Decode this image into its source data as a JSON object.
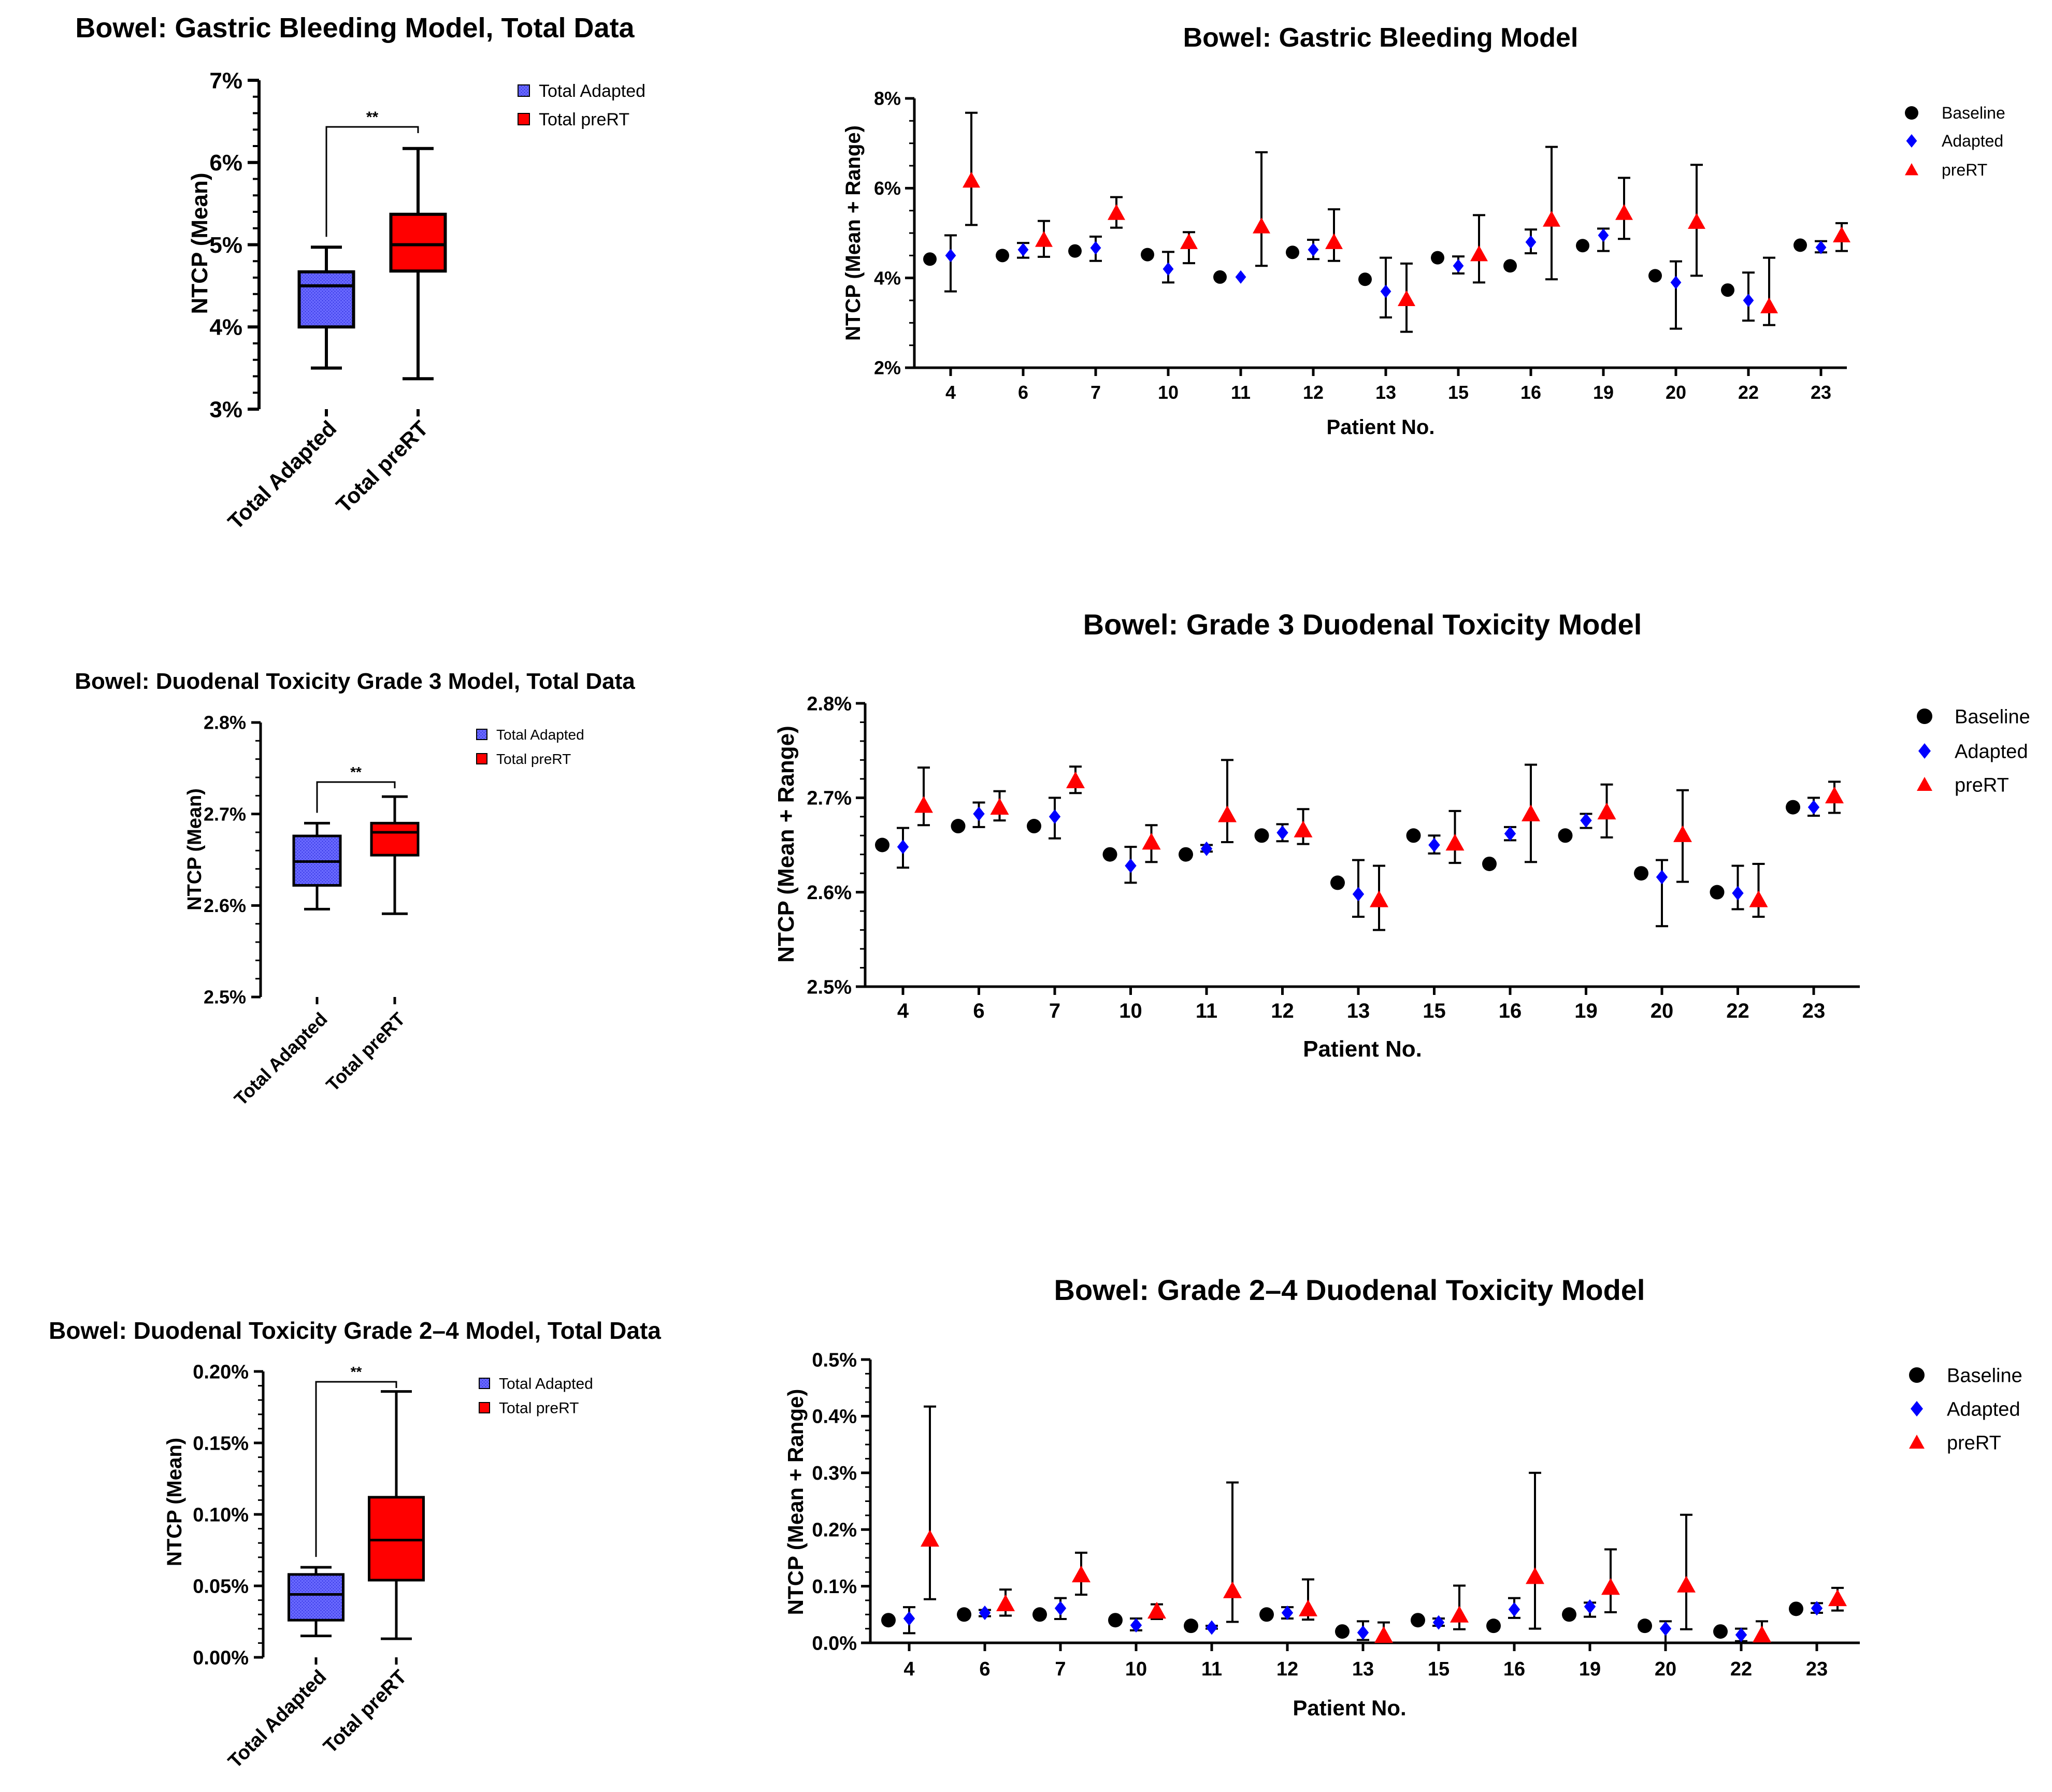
{
  "colors": {
    "axis": "#000000",
    "baseline": "#000000",
    "adapted": "#0000ff",
    "preRT": "#ff0000",
    "box_adapted": "#6a6aff",
    "box_preRT": "#ff0000"
  },
  "patients": [
    "4",
    "6",
    "7",
    "10",
    "11",
    "12",
    "13",
    "15",
    "16",
    "19",
    "20",
    "22",
    "23"
  ],
  "box_categories": [
    "Total Adapted",
    "Total preRT"
  ],
  "chart_data": [
    {
      "type": "box",
      "title": "Bowel: Gastric Bleeding Model, Total Data",
      "ylabel": "NTCP (Mean)",
      "yticks": [
        "3%",
        "4%",
        "5%",
        "6%",
        "7%"
      ],
      "ylim": [
        3,
        7
      ],
      "categories": [
        "Total Adapted",
        "Total preRT"
      ],
      "boxes": [
        {
          "name": "Total Adapted",
          "min": 3.5,
          "q1": 4.0,
          "median": 4.5,
          "q3": 4.67,
          "max": 4.97
        },
        {
          "name": "Total preRT",
          "min": 3.37,
          "q1": 4.68,
          "median": 5.0,
          "q3": 5.37,
          "max": 6.17
        }
      ],
      "legend": [
        "Total Adapted",
        "Total preRT"
      ],
      "significance": "**"
    },
    {
      "type": "scatter",
      "title": "Bowel: Gastric Bleeding Model",
      "xlabel": "Patient No.",
      "ylabel": "NTCP (Mean + Range)",
      "yticks": [
        "2%",
        "4%",
        "6%",
        "8%"
      ],
      "ylim": [
        2,
        8
      ],
      "categories": [
        "4",
        "6",
        "7",
        "10",
        "11",
        "12",
        "13",
        "15",
        "16",
        "19",
        "20",
        "22",
        "23"
      ],
      "series": [
        {
          "name": "Baseline",
          "values": [
            4.42,
            4.5,
            4.6,
            4.52,
            4.02,
            4.57,
            3.97,
            4.45,
            4.27,
            4.72,
            4.05,
            3.73,
            4.73
          ]
        },
        {
          "name": "Adapted",
          "values": [
            4.5,
            4.63,
            4.67,
            4.2,
            4.02,
            4.63,
            3.7,
            4.27,
            4.8,
            4.95,
            3.9,
            3.5,
            4.68
          ],
          "low": [
            3.7,
            4.45,
            4.38,
            3.9,
            4.02,
            4.42,
            3.12,
            4.1,
            4.55,
            4.6,
            2.87,
            3.05,
            4.57
          ],
          "high": [
            4.95,
            4.78,
            4.92,
            4.58,
            4.02,
            4.85,
            4.45,
            4.48,
            5.08,
            5.1,
            4.37,
            4.12,
            4.82
          ]
        },
        {
          "name": "preRT",
          "values": [
            6.17,
            4.85,
            5.45,
            4.8,
            5.15,
            4.8,
            3.53,
            4.53,
            5.3,
            5.45,
            5.25,
            3.37,
            4.95
          ],
          "low": [
            5.18,
            4.47,
            5.12,
            4.33,
            4.27,
            4.38,
            2.8,
            3.9,
            3.97,
            4.87,
            4.05,
            2.95,
            4.6
          ],
          "high": [
            7.68,
            5.27,
            5.8,
            5.02,
            6.8,
            5.53,
            4.32,
            5.4,
            6.92,
            6.23,
            6.52,
            4.45,
            5.22
          ]
        }
      ],
      "legend": [
        "Baseline",
        "Adapted",
        "preRT"
      ]
    },
    {
      "type": "box",
      "title": "Bowel: Duodenal Toxicity Grade 3 Model, Total Data",
      "ylabel": "NTCP (Mean)",
      "yticks": [
        "2.5%",
        "2.6%",
        "2.7%",
        "2.8%"
      ],
      "ylim": [
        2.5,
        2.8
      ],
      "categories": [
        "Total Adapted",
        "Total preRT"
      ],
      "boxes": [
        {
          "name": "Total Adapted",
          "min": 2.596,
          "q1": 2.622,
          "median": 2.648,
          "q3": 2.676,
          "max": 2.69
        },
        {
          "name": "Total preRT",
          "min": 2.591,
          "q1": 2.655,
          "median": 2.68,
          "q3": 2.69,
          "max": 2.719
        }
      ],
      "legend": [
        "Total Adapted",
        "Total preRT"
      ],
      "significance": "**"
    },
    {
      "type": "scatter",
      "title": "Bowel: Grade 3 Duodenal Toxicity Model",
      "xlabel": "Patient No.",
      "ylabel": "NTCP (Mean + Range)",
      "yticks": [
        "2.5%",
        "2.6%",
        "2.7%",
        "2.8%"
      ],
      "ylim": [
        2.5,
        2.8
      ],
      "categories": [
        "4",
        "6",
        "7",
        "10",
        "11",
        "12",
        "13",
        "15",
        "16",
        "19",
        "20",
        "22",
        "23"
      ],
      "series": [
        {
          "name": "Baseline",
          "values": [
            2.65,
            2.67,
            2.67,
            2.64,
            2.64,
            2.66,
            2.61,
            2.66,
            2.63,
            2.66,
            2.62,
            2.6,
            2.69
          ]
        },
        {
          "name": "Adapted",
          "values": [
            2.648,
            2.683,
            2.68,
            2.628,
            2.646,
            2.663,
            2.598,
            2.65,
            2.662,
            2.676,
            2.616,
            2.599,
            2.69
          ],
          "low": [
            2.626,
            2.669,
            2.657,
            2.61,
            2.643,
            2.654,
            2.574,
            2.641,
            2.655,
            2.668,
            2.564,
            2.582,
            2.681
          ],
          "high": [
            2.668,
            2.695,
            2.7,
            2.648,
            2.65,
            2.672,
            2.634,
            2.66,
            2.669,
            2.683,
            2.634,
            2.628,
            2.7
          ]
        },
        {
          "name": "preRT",
          "values": [
            2.692,
            2.69,
            2.718,
            2.653,
            2.682,
            2.666,
            2.592,
            2.652,
            2.683,
            2.685,
            2.661,
            2.592,
            2.702
          ],
          "low": [
            2.671,
            2.676,
            2.705,
            2.632,
            2.653,
            2.651,
            2.56,
            2.631,
            2.632,
            2.658,
            2.611,
            2.574,
            2.684
          ],
          "high": [
            2.732,
            2.707,
            2.733,
            2.671,
            2.74,
            2.688,
            2.628,
            2.686,
            2.735,
            2.714,
            2.708,
            2.63,
            2.717
          ]
        }
      ],
      "legend": [
        "Baseline",
        "Adapted",
        "preRT"
      ]
    },
    {
      "type": "box",
      "title": "Bowel: Duodenal Toxicity Grade 2–4  Model, Total Data",
      "ylabel": "NTCP (Mean)",
      "yticks": [
        "0.00%",
        "0.05%",
        "0.10%",
        "0.15%",
        "0.20%"
      ],
      "ylim": [
        0,
        0.2
      ],
      "categories": [
        "Total Adapted",
        "Total preRT"
      ],
      "boxes": [
        {
          "name": "Total Adapted",
          "min": 0.015,
          "q1": 0.026,
          "median": 0.044,
          "q3": 0.058,
          "max": 0.063
        },
        {
          "name": "Total preRT",
          "min": 0.013,
          "q1": 0.054,
          "median": 0.082,
          "q3": 0.112,
          "max": 0.186
        }
      ],
      "legend": [
        "Total Adapted",
        "Total preRT"
      ],
      "significance": "**"
    },
    {
      "type": "scatter",
      "title": "Bowel: Grade 2–4 Duodenal Toxicity Model",
      "xlabel": "Patient No.",
      "ylabel": "NTCP (Mean + Range)",
      "yticks": [
        "0.0%",
        "0.1%",
        "0.2%",
        "0.3%",
        "0.4%",
        "0.5%"
      ],
      "ylim": [
        0,
        0.5
      ],
      "categories": [
        "4",
        "6",
        "7",
        "10",
        "11",
        "12",
        "13",
        "15",
        "16",
        "19",
        "20",
        "22",
        "23"
      ],
      "series": [
        {
          "name": "Baseline",
          "values": [
            0.04,
            0.05,
            0.05,
            0.04,
            0.03,
            0.05,
            0.02,
            0.04,
            0.03,
            0.05,
            0.03,
            0.02,
            0.06
          ]
        },
        {
          "name": "Adapted",
          "values": [
            0.043,
            0.053,
            0.061,
            0.031,
            0.027,
            0.053,
            0.018,
            0.036,
            0.059,
            0.064,
            0.025,
            0.014,
            0.061
          ],
          "low": [
            0.017,
            0.047,
            0.042,
            0.022,
            0.025,
            0.043,
            0.005,
            0.03,
            0.044,
            0.046,
            0.0,
            0.003,
            0.053
          ],
          "high": [
            0.063,
            0.058,
            0.079,
            0.043,
            0.03,
            0.063,
            0.038,
            0.043,
            0.079,
            0.071,
            0.038,
            0.025,
            0.07
          ]
        },
        {
          "name": "preRT",
          "values": [
            0.183,
            0.069,
            0.12,
            0.056,
            0.092,
            0.06,
            0.013,
            0.049,
            0.117,
            0.098,
            0.102,
            0.014,
            0.078
          ],
          "low": [
            0.077,
            0.048,
            0.085,
            0.042,
            0.037,
            0.041,
            0.0,
            0.024,
            0.025,
            0.054,
            0.024,
            0.0,
            0.057
          ],
          "high": [
            0.417,
            0.094,
            0.159,
            0.068,
            0.283,
            0.112,
            0.036,
            0.101,
            0.3,
            0.165,
            0.226,
            0.038,
            0.097
          ]
        }
      ],
      "legend": [
        "Baseline",
        "Adapted",
        "preRT"
      ]
    }
  ]
}
